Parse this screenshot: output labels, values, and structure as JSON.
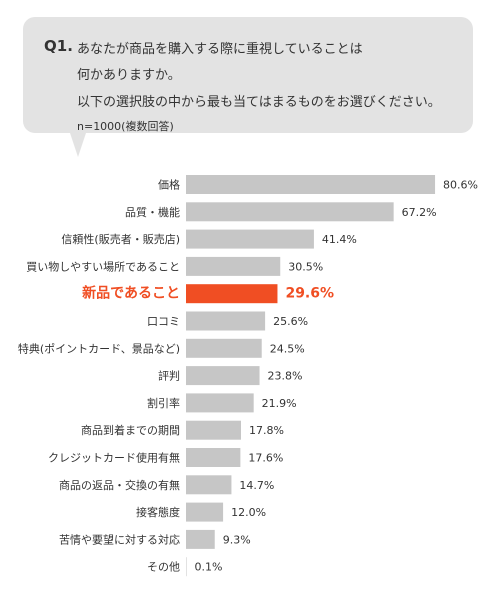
{
  "question": {
    "number": "Q1.",
    "lines": [
      "あなたが商品を購入する際に重視していることは",
      "何かありますか。",
      "以下の選択肢の中から最も当てはまるものをお選びください。"
    ],
    "sample": "n=1000(複数回答)"
  },
  "colors": {
    "bar": "#c6c6c6",
    "highlight": "#f04e23",
    "bubble": "#e3e3e3",
    "text": "#333333"
  },
  "chart_data": {
    "type": "bar",
    "orientation": "horizontal",
    "categories": [
      "価格",
      "品質・機能",
      "信頼性(販売者・販売店)",
      "買い物しやすい場所であること",
      "新品であること",
      "口コミ",
      "特典(ポイントカード、景品など)",
      "評判",
      "割引率",
      "商品到着までの期間",
      "クレジットカード使用有無",
      "商品の返品・交換の有無",
      "接客態度",
      "苦情や要望に対する対応",
      "その他"
    ],
    "values": [
      80.6,
      67.2,
      41.4,
      30.5,
      29.6,
      25.6,
      24.5,
      23.8,
      21.9,
      17.8,
      17.6,
      14.7,
      12.0,
      9.3,
      0.1
    ],
    "value_labels": [
      "80.6%",
      "67.2%",
      "41.4%",
      "30.5%",
      "29.6%",
      "25.6%",
      "24.5%",
      "23.8%",
      "21.9%",
      "17.8%",
      "17.6%",
      "14.7%",
      "12.0%",
      "9.3%",
      "0.1%"
    ],
    "highlight_index": 4,
    "unit": "%",
    "xlim": [
      0,
      100
    ],
    "grid": false,
    "legend": "none"
  }
}
